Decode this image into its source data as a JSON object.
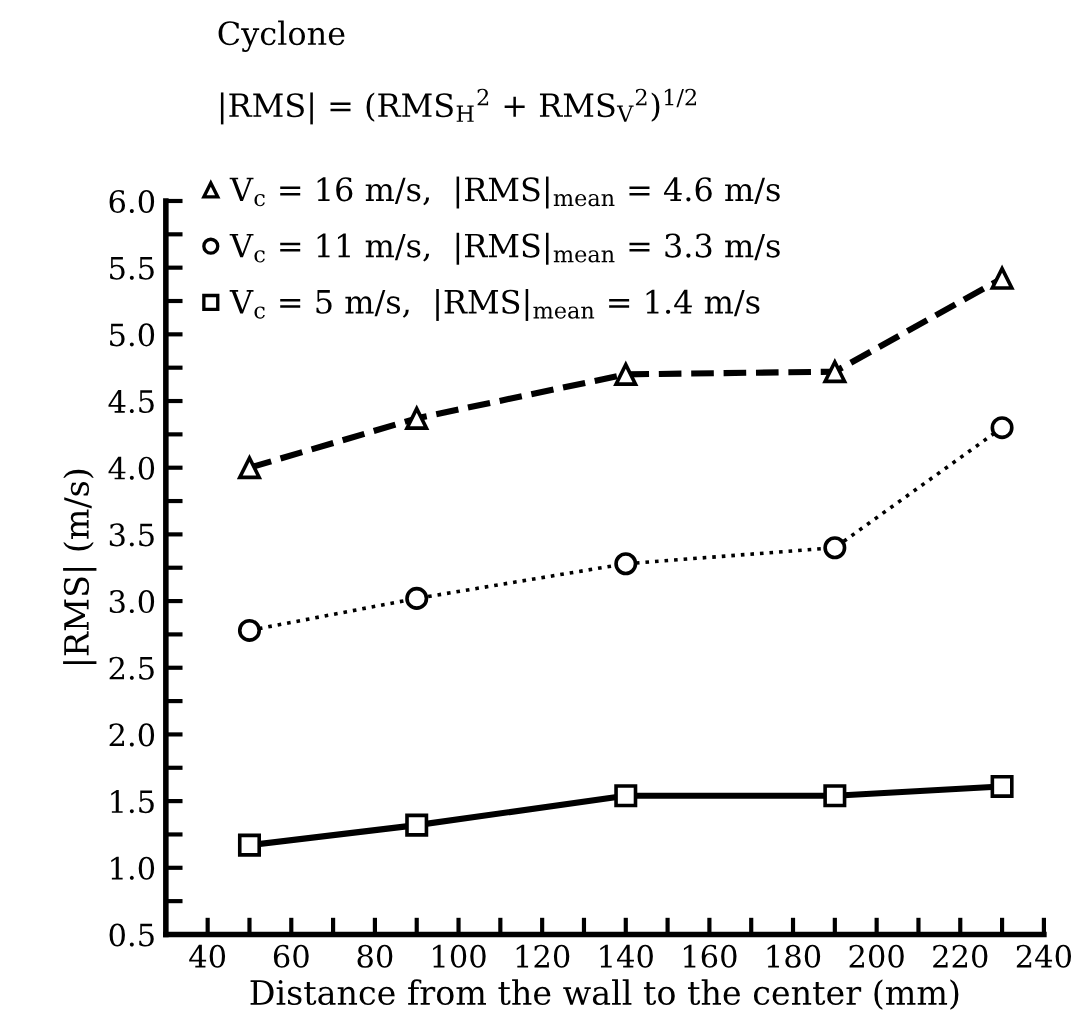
{
  "chart_data": {
    "type": "line",
    "xlabel": "Distance from the wall to the center (mm)",
    "ylabel": "|RMS| (m/s)",
    "annotations": [
      "Cyclone",
      "|RMS| = (RMS$_{H}$$^{2}$ + RMS$_{V}$$^{2}$)$^{1/2}$"
    ],
    "x": [
      50,
      90,
      140,
      190,
      230
    ],
    "series": [
      {
        "name": "V$_{c}$ = 16 m/s,  |RMS|$_{mean}$ = 4.6 m/s",
        "color": "#000000",
        "marker": "triangle",
        "line_style": "dashed",
        "values": [
          4.0,
          4.37,
          4.7,
          4.72,
          5.42
        ]
      },
      {
        "name": "V$_{c}$ = 11 m/s,  |RMS|$_{mean}$ = 3.3 m/s",
        "color": "#000000",
        "marker": "circle",
        "line_style": "dotted",
        "values": [
          2.78,
          3.02,
          3.28,
          3.4,
          4.3
        ]
      },
      {
        "name": "V$_{c}$ = 5 m/s,  |RMS|$_{mean}$ = 1.4 m/s",
        "color": "#000000",
        "marker": "square",
        "line_style": "solid",
        "values": [
          1.17,
          1.32,
          1.54,
          1.54,
          1.61
        ]
      }
    ],
    "xlim": [
      30,
      240
    ],
    "xticks": [
      40,
      {
        "value": 50,
        "label": null
      },
      60,
      {
        "value": 70,
        "label": null
      },
      80,
      {
        "value": 90,
        "label": null
      },
      100,
      {
        "value": 110,
        "label": null
      },
      120,
      {
        "value": 130,
        "label": null
      },
      140,
      {
        "value": 150,
        "label": null
      },
      160,
      {
        "value": 170,
        "label": null
      },
      180,
      {
        "value": 190,
        "label": null
      },
      200,
      {
        "value": 210,
        "label": null
      },
      220,
      {
        "value": 230,
        "label": null
      },
      240
    ],
    "ylim": [
      0.5,
      6.0
    ],
    "yticks": [
      {
        "value": 0.5,
        "label": "0.5"
      },
      {
        "value": 0.75,
        "label": null
      },
      {
        "value": 1.0,
        "label": "1.0"
      },
      {
        "value": 1.25,
        "label": null
      },
      {
        "value": 1.5,
        "label": "1.5"
      },
      {
        "value": 1.75,
        "label": null
      },
      {
        "value": 2.0,
        "label": "2.0"
      },
      {
        "value": 2.25,
        "label": null
      },
      {
        "value": 2.5,
        "label": "2.5"
      },
      {
        "value": 2.75,
        "label": null
      },
      {
        "value": 3.0,
        "label": "3.0"
      },
      {
        "value": 3.25,
        "label": null
      },
      {
        "value": 3.5,
        "label": "3.5"
      },
      {
        "value": 3.75,
        "label": null
      },
      {
        "value": 4.0,
        "label": "4.0"
      },
      {
        "value": 4.25,
        "label": null
      },
      {
        "value": 4.5,
        "label": "4.5"
      },
      {
        "value": 4.75,
        "label": null
      },
      {
        "value": 5.0,
        "label": "5.0"
      },
      {
        "value": 5.25,
        "label": null
      },
      {
        "value": 5.5,
        "label": "5.5"
      },
      {
        "value": 5.75,
        "label": null
      },
      {
        "value": 6.0,
        "label": "6.0"
      }
    ],
    "grid": false,
    "legend": "top left"
  }
}
